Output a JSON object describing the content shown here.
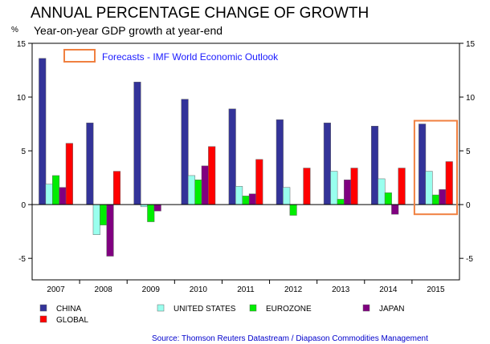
{
  "chart_data": {
    "type": "bar",
    "title": "ANNUAL PERCENTAGE CHANGE OF GROWTH",
    "subtitle": "Year-on-year GDP growth at year-end",
    "ylabel": "%",
    "ylim": [
      -7,
      15
    ],
    "yticks": [
      -5,
      0,
      5,
      10,
      15
    ],
    "categories": [
      "2007",
      "2008",
      "2009",
      "2010",
      "2011",
      "2012",
      "2013",
      "2014",
      "2015"
    ],
    "series": [
      {
        "name": "CHINA",
        "color": "#333399",
        "values": [
          13.6,
          7.6,
          11.4,
          9.8,
          8.9,
          7.9,
          7.6,
          7.3,
          7.5
        ]
      },
      {
        "name": "UNITED STATES",
        "color": "#99ffee",
        "values": [
          1.9,
          -2.8,
          -0.2,
          2.7,
          1.7,
          1.6,
          3.1,
          2.4,
          3.1
        ]
      },
      {
        "name": "EUROZONE",
        "color": "#00ee00",
        "values": [
          2.7,
          -1.9,
          -1.6,
          2.3,
          0.8,
          -1.0,
          0.5,
          1.1,
          0.9
        ]
      },
      {
        "name": "JAPAN",
        "color": "#800080",
        "values": [
          1.6,
          -4.8,
          -0.6,
          3.6,
          1.0,
          0.0,
          2.3,
          -0.9,
          1.4
        ]
      },
      {
        "name": "GLOBAL",
        "color": "#ff0000",
        "values": [
          5.7,
          3.1,
          0.0,
          5.4,
          4.2,
          3.4,
          3.4,
          3.4,
          4.0
        ]
      }
    ],
    "forecast_label": "Forecasts - IMF World Economic Outlook",
    "forecast_color": "#f08040",
    "forecast_category": "2015",
    "source": "Source: Thomson Reuters Datastream / Diapason Commodities Management",
    "grid": false
  }
}
